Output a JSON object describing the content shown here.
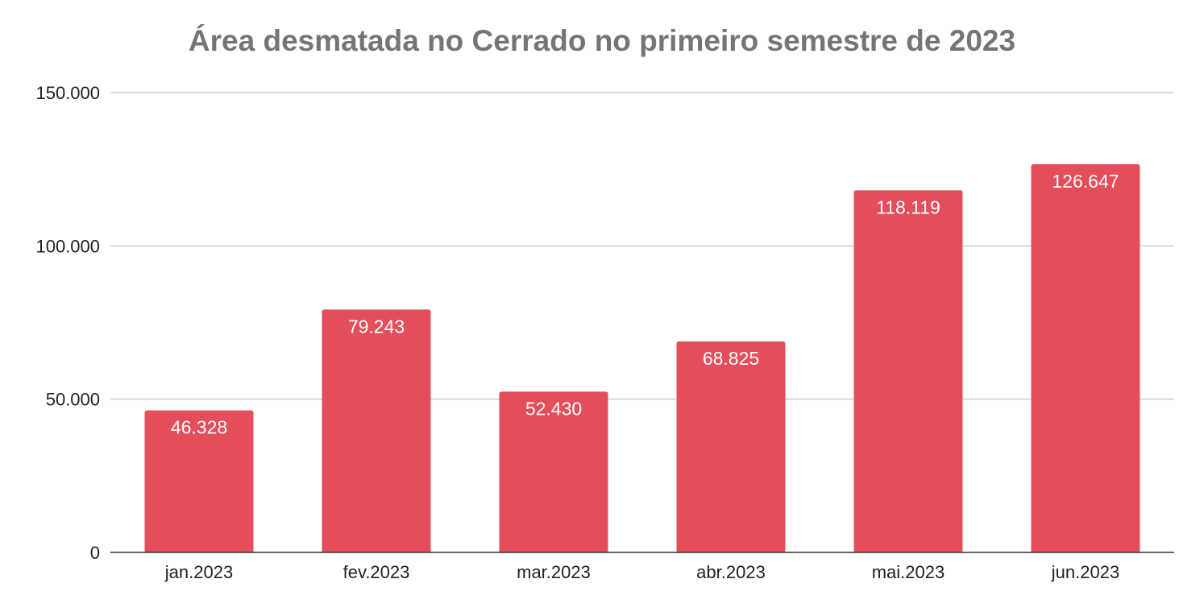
{
  "chart_data": {
    "type": "bar",
    "title": "Área desmatada no Cerrado no primeiro semestre de 2023",
    "xlabel": "",
    "ylabel": "",
    "categories": [
      "jan.2023",
      "fev.2023",
      "mar.2023",
      "abr.2023",
      "mai.2023",
      "jun.2023"
    ],
    "values": [
      46328,
      79243,
      52430,
      68825,
      118119,
      126647
    ],
    "data_labels": [
      "46.328",
      "79.243",
      "52.430",
      "68.825",
      "118.119",
      "126.647"
    ],
    "ylim": [
      0,
      150000
    ],
    "yticks": [
      0,
      50000,
      100000,
      150000
    ],
    "ytick_labels": [
      "0",
      "50.000",
      "100.000",
      "150.000"
    ],
    "grid": true,
    "legend": "none",
    "colors": {
      "bar": "#e44e5b",
      "title": "#757575",
      "grid": "#cccccc",
      "axis": "#333333",
      "label_text": "#ffffff",
      "tick_text": "#222222"
    }
  }
}
